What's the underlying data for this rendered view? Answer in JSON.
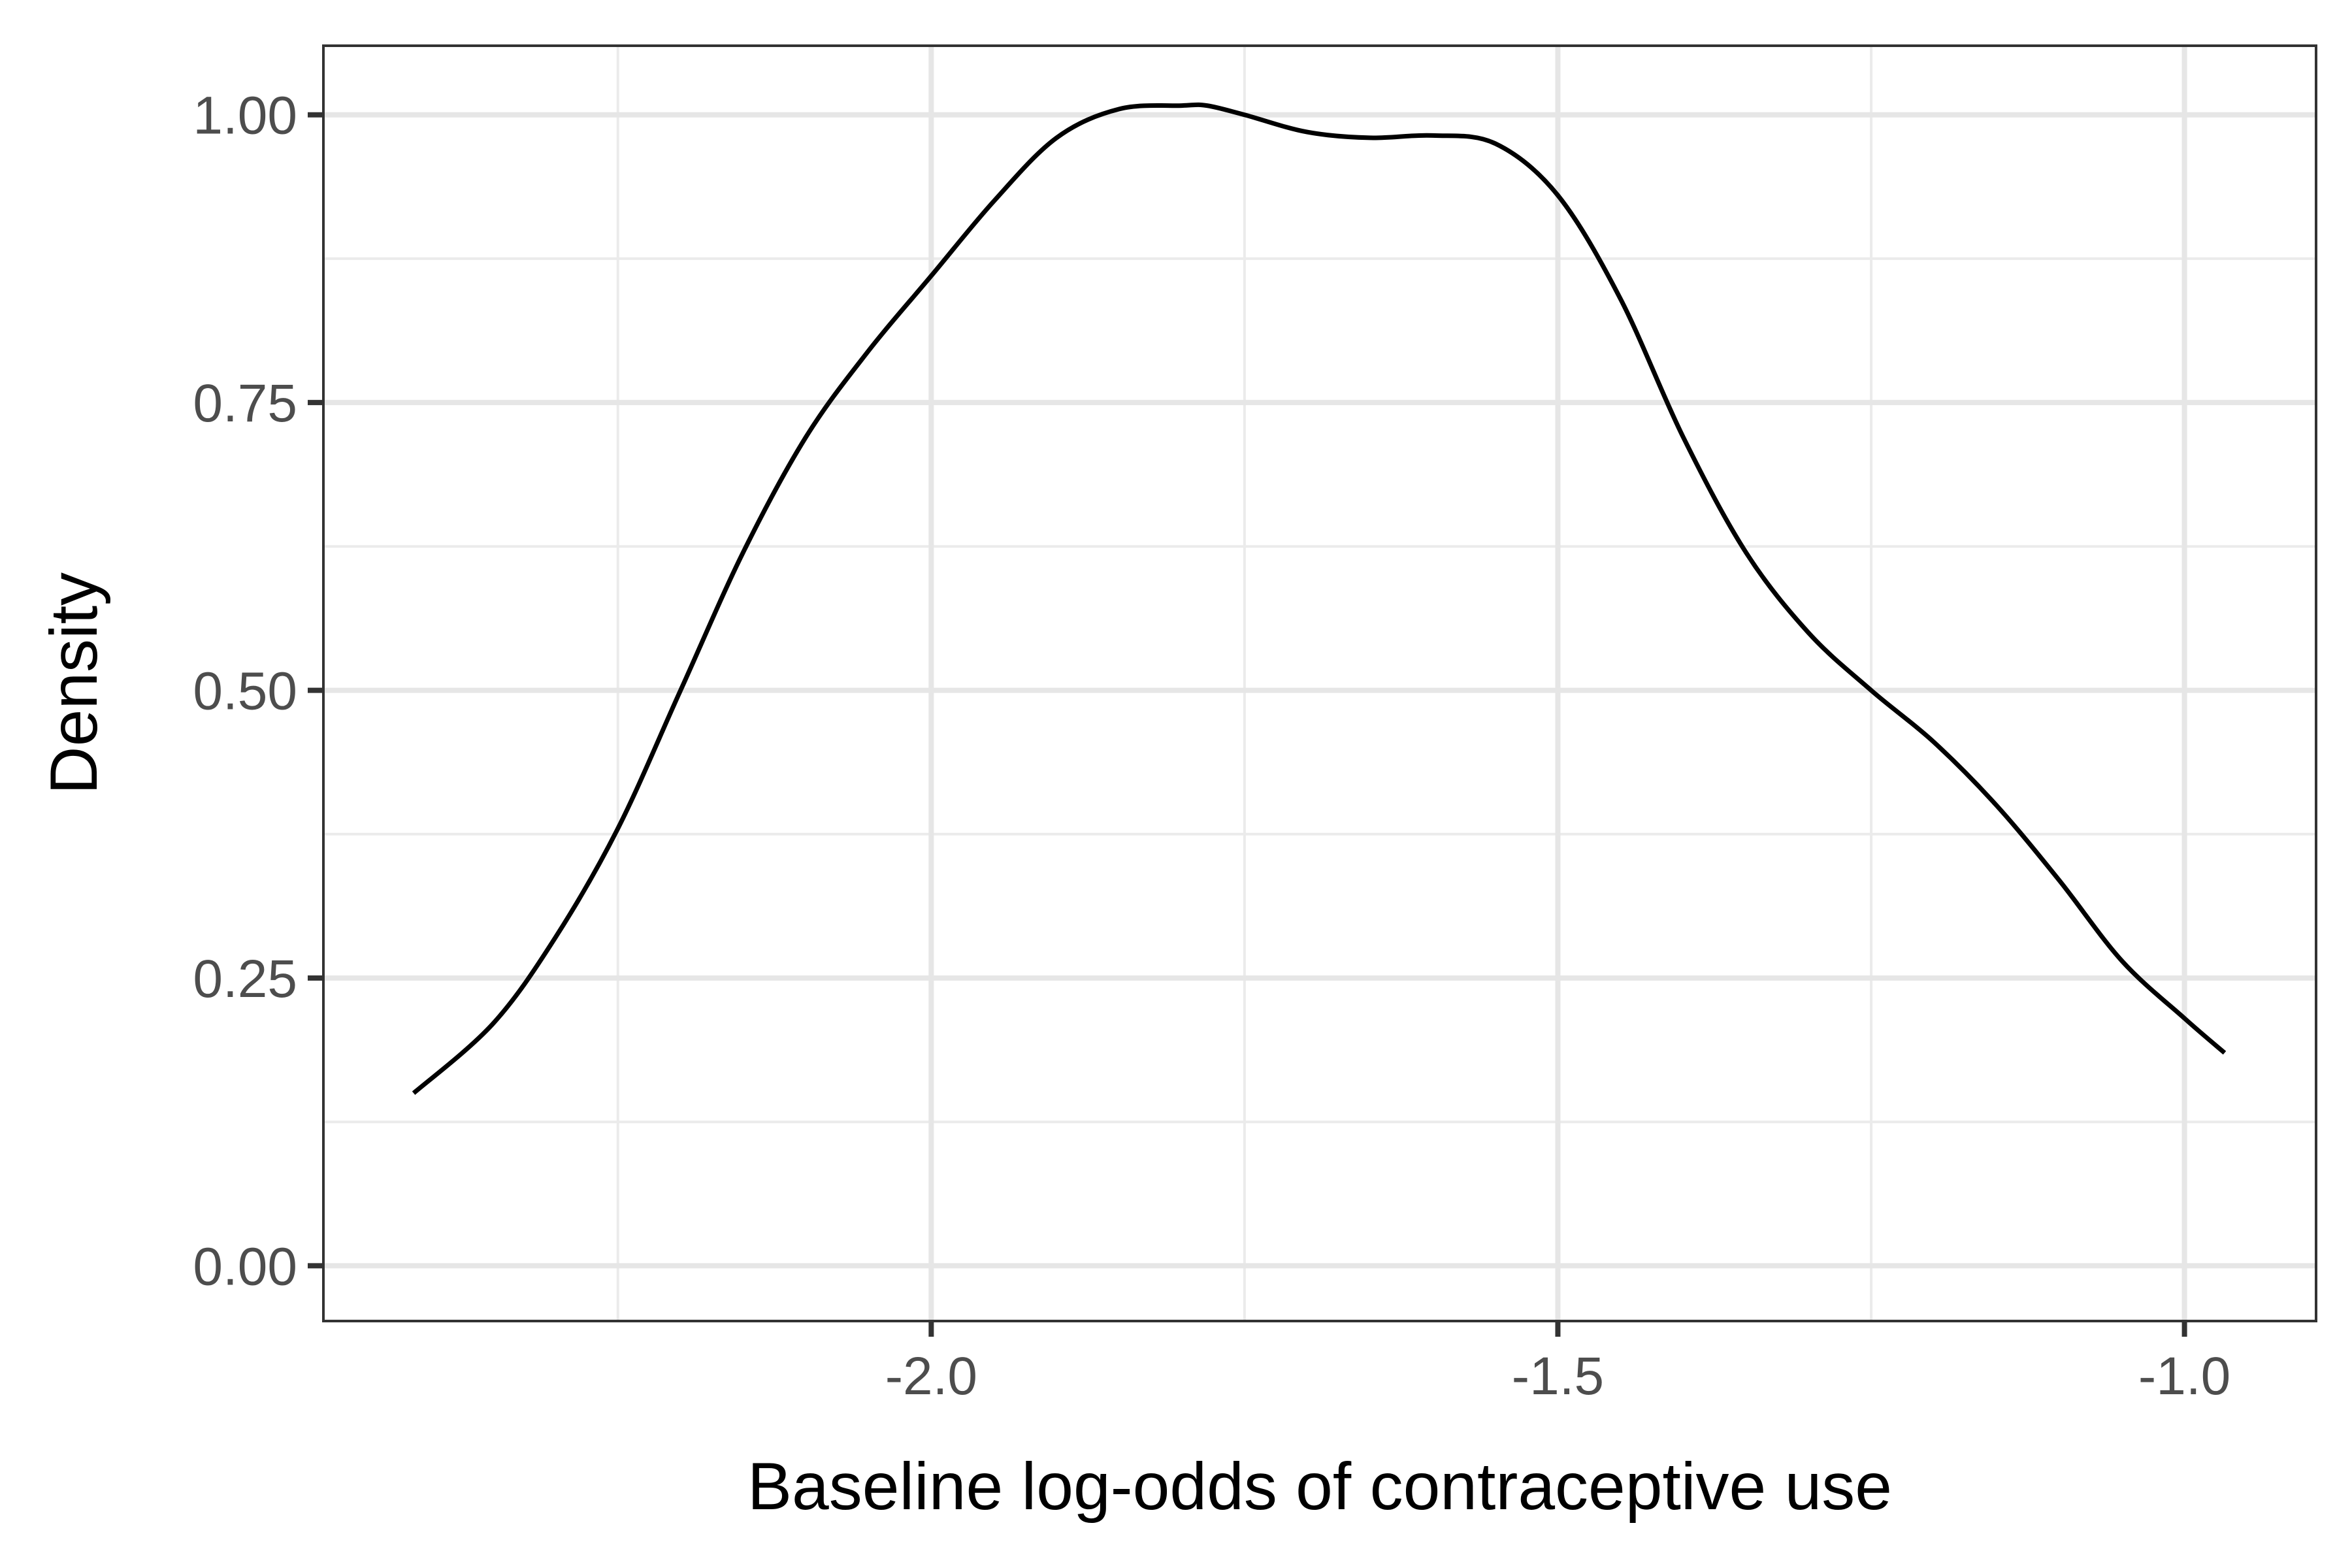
{
  "chart_data": {
    "type": "line",
    "title": "",
    "xlabel": "Baseline log-odds of contraceptive use",
    "ylabel": "Density",
    "xlim": [
      -2.485,
      -0.895
    ],
    "ylim": [
      -0.048,
      1.06
    ],
    "x_ticks": [
      -2.0,
      -1.5,
      -1.0
    ],
    "x_tick_labels": [
      "-2.0",
      "-1.5",
      "-1.0"
    ],
    "x_minor_ticks": [
      -2.25,
      -1.75,
      -1.25
    ],
    "y_ticks": [
      0.0,
      0.25,
      0.5,
      0.75,
      1.0
    ],
    "y_tick_labels": [
      "0.00",
      "0.25",
      "0.50",
      "0.75",
      "1.00"
    ],
    "y_minor_ticks": [
      0.125,
      0.375,
      0.625,
      0.875
    ],
    "grid": true,
    "legend": "none",
    "series": [
      {
        "color": "#000000",
        "x": [
          -2.413,
          -2.35,
          -2.3,
          -2.25,
          -2.2,
          -2.15,
          -2.1,
          -2.05,
          -2.0,
          -1.95,
          -1.9,
          -1.85,
          -1.8,
          -1.78,
          -1.75,
          -1.7,
          -1.65,
          -1.6,
          -1.55,
          -1.5,
          -1.45,
          -1.4,
          -1.35,
          -1.3,
          -1.25,
          -1.2,
          -1.15,
          -1.1,
          -1.05,
          -1.0,
          -0.968
        ],
        "y": [
          0.15,
          0.21,
          0.285,
          0.38,
          0.5,
          0.62,
          0.72,
          0.795,
          0.86,
          0.925,
          0.98,
          1.005,
          1.008,
          1.008,
          1.0,
          0.985,
          0.98,
          0.982,
          0.975,
          0.93,
          0.84,
          0.72,
          0.62,
          0.55,
          0.5,
          0.455,
          0.4,
          0.335,
          0.265,
          0.215,
          0.185
        ]
      }
    ]
  }
}
